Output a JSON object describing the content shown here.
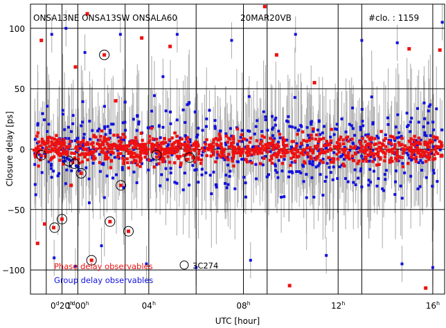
{
  "header": {
    "stations": "ONSA13NE ONSA13SW ONSALA60",
    "session": "20MAR20VB",
    "count_label": "#clo. : 1159"
  },
  "axes": {
    "xlabel": "UTC [hour]",
    "ylabel": "Closure delay [ps]"
  },
  "legend": {
    "phase_label": "Phase delay observables",
    "group_label": "Group delay observables",
    "circle_label": "3C274"
  },
  "colors": {
    "phase": "#ee1111",
    "group": "#1111dd",
    "errorbar": "#a8a8a8",
    "grid": "#000000"
  },
  "chart_data": {
    "type": "scatter",
    "title": "",
    "xlabel": "UTC [hour]",
    "ylabel": "Closure delay [ps]",
    "xlim": [
      -1.0,
      16.5
    ],
    "ylim": [
      -120,
      120
    ],
    "grid": true,
    "legend_position": "bottom-left",
    "x_ticks": [
      {
        "value": 0.333,
        "label": "0d20h"
      },
      {
        "value": 1.0,
        "label": "1d00h"
      },
      {
        "value": 4.0,
        "label": "04h"
      },
      {
        "value": 8.0,
        "label": "08h"
      },
      {
        "value": 12.0,
        "label": "12h"
      },
      {
        "value": 16.0,
        "label": "16h"
      }
    ],
    "x_grid": [
      -0.333,
      3.0,
      6.0,
      9.0,
      13.0
    ],
    "y_ticks": [
      -100,
      -50,
      0,
      50,
      100
    ],
    "series": [
      {
        "name": "Phase delay observables",
        "color": "#ee1111",
        "points": [
          [
            -0.54,
            90
          ],
          [
            -0.02,
            -65
          ],
          [
            0.33,
            -58
          ],
          [
            0.72,
            -30
          ],
          [
            1.14,
            -20
          ],
          [
            1.58,
            -92
          ],
          [
            2.12,
            78
          ],
          [
            2.36,
            -60
          ],
          [
            2.82,
            -30
          ],
          [
            3.14,
            -68
          ],
          [
            4.9,
            85
          ],
          [
            8.9,
            118
          ],
          [
            9.4,
            78
          ],
          [
            9.95,
            -113
          ],
          [
            15.0,
            83
          ],
          [
            16.3,
            82
          ],
          [
            15.7,
            -115
          ],
          [
            0.9,
            68
          ],
          [
            1.4,
            112
          ],
          [
            3.7,
            92
          ],
          [
            -0.7,
            -78
          ],
          [
            -0.4,
            -62
          ],
          [
            11.0,
            55
          ],
          [
            2.6,
            40
          ]
        ]
      },
      {
        "name": "Group delay observables",
        "color": "#1111dd",
        "points": [
          [
            -0.1,
            95
          ],
          [
            0.5,
            100
          ],
          [
            1.3,
            80
          ],
          [
            2.8,
            95
          ],
          [
            5.2,
            95
          ],
          [
            7.5,
            90
          ],
          [
            10.2,
            95
          ],
          [
            13.0,
            90
          ],
          [
            14.5,
            88
          ],
          [
            16.4,
            105
          ],
          [
            0.0,
            -90
          ],
          [
            0.9,
            -97
          ],
          [
            2.0,
            -80
          ],
          [
            3.9,
            -95
          ],
          [
            6.0,
            -98
          ],
          [
            8.3,
            -92
          ],
          [
            11.5,
            -88
          ],
          [
            14.7,
            -95
          ],
          [
            16.0,
            -98
          ],
          [
            4.6,
            60
          ]
        ]
      }
    ],
    "dense_band": {
      "center": 0,
      "phase_spread": 12,
      "group_spread": 40
    },
    "circled_points": [
      [
        -0.54,
        -5
      ],
      [
        0.02,
        -65
      ],
      [
        0.33,
        -58
      ],
      [
        0.62,
        -10
      ],
      [
        0.85,
        -12
      ],
      [
        1.14,
        -20
      ],
      [
        1.58,
        -92
      ],
      [
        2.12,
        78
      ],
      [
        2.36,
        -60
      ],
      [
        2.82,
        -30
      ],
      [
        3.14,
        -68
      ],
      [
        4.32,
        -5
      ],
      [
        5.72,
        -7
      ]
    ]
  }
}
